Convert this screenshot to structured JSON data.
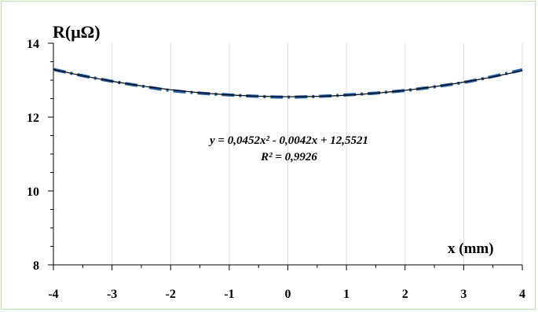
{
  "chart_data": {
    "type": "line",
    "ylabel": "R(μΩ)",
    "xlabel": "x (mm)",
    "xlim": [
      -4,
      4
    ],
    "ylim": [
      8,
      14
    ],
    "x_ticks": [
      "-4",
      "-3",
      "-2",
      "-1",
      "0",
      "1",
      "2",
      "3",
      "4"
    ],
    "y_ticks": [
      "8",
      "10",
      "12",
      "14"
    ],
    "grid": "vertical",
    "series": [
      {
        "style": "dash-dot",
        "color": "#1f5fa8",
        "x": [
          -4,
          -3.5,
          -3,
          -2.5,
          -2,
          -1.5,
          -1,
          -0.5,
          0,
          0.5,
          1,
          1.5,
          2,
          2.5,
          3,
          3.5,
          4
        ],
        "y": [
          13.29,
          13.12,
          12.97,
          12.84,
          12.72,
          12.65,
          12.6,
          12.56,
          12.54,
          12.56,
          12.6,
          12.65,
          12.72,
          12.82,
          12.94,
          13.1,
          13.28
        ]
      }
    ],
    "trendline": {
      "type": "polynomial",
      "color": "#000000",
      "coefficients": [
        0.0452,
        -0.0042,
        12.5521
      ],
      "equation": "y = 0,0452x² - 0,0042x + 12,5521",
      "r_squared": "R² = 0,9926"
    }
  }
}
